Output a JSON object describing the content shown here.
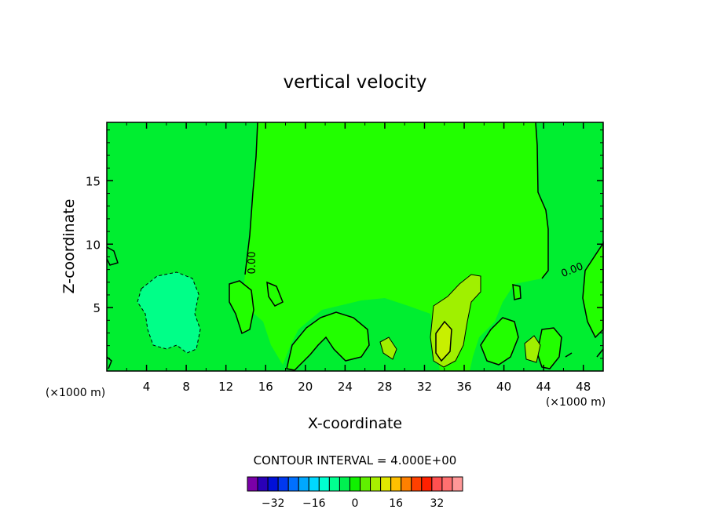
{
  "chart_data": {
    "type": "heatmap",
    "title": "vertical velocity",
    "xlabel": "X-coordinate",
    "ylabel": "Z-coordinate",
    "x_unit_label": "(×1000 m)",
    "x_unit_label_right": "(×1000 m)",
    "xlim": [
      0,
      50
    ],
    "ylim": [
      0,
      19.6
    ],
    "x_ticks": [
      "4",
      "8",
      "12",
      "16",
      "20",
      "24",
      "28",
      "32",
      "36",
      "40",
      "44",
      "48"
    ],
    "y_ticks": [
      "5",
      "10",
      "15"
    ],
    "contour_interval_text": "CONTOUR INTERVAL = 4.000E+00",
    "contour_labels": [
      "0.00",
      "0.00"
    ],
    "colorbar": {
      "tick_labels": [
        "−32",
        "−16",
        "0",
        "16",
        "32"
      ],
      "colors": [
        "#7a00a8",
        "#2a00b8",
        "#0010d8",
        "#0038f0",
        "#0070ff",
        "#00a8ff",
        "#00d8ff",
        "#00ffd0",
        "#00ff90",
        "#00f050",
        "#10f000",
        "#60f000",
        "#a8f000",
        "#e0e800",
        "#ffc000",
        "#ff8000",
        "#ff4000",
        "#ff2000",
        "#ff5050",
        "#ff7070",
        "#ff9898"
      ]
    },
    "regions": [
      {
        "name": "background",
        "value": 0,
        "color": "#00ee30"
      },
      {
        "name": "central-updraft",
        "value": 0,
        "color": "#22ff00"
      },
      {
        "name": "downdraft-left",
        "value": -4,
        "color": "#00ff88"
      },
      {
        "name": "updraft-33km",
        "value": 8,
        "color": "#a0f000"
      },
      {
        "name": "updraft-core",
        "value": 12,
        "color": "#c8f000"
      }
    ]
  }
}
